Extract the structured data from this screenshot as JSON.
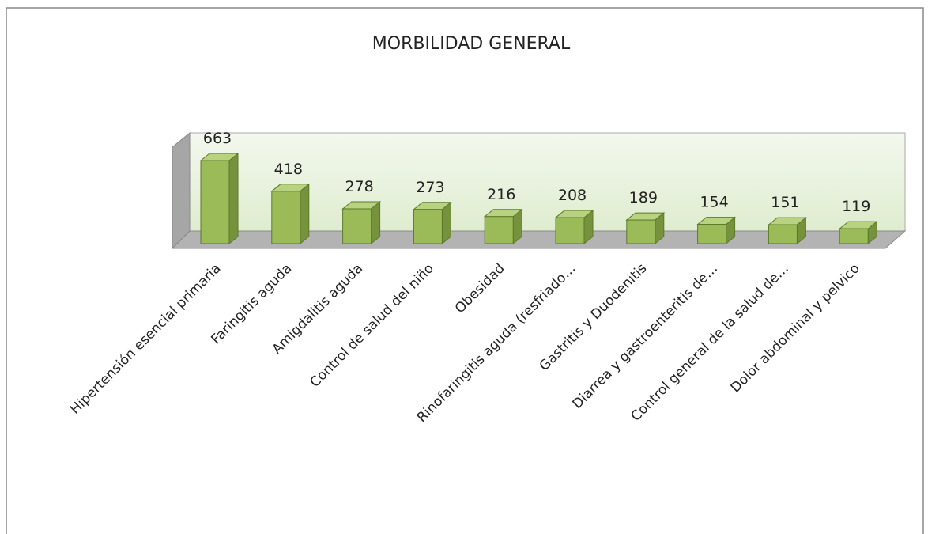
{
  "chart_data": {
    "type": "bar3d",
    "title": "MORBILIDAD GENERAL",
    "categories": [
      "Hipertensión esencial primaria",
      "Faringitis aguda",
      "Amigdalitis aguda",
      "Control de salud del niño",
      "Obesidad",
      "Rinofaringitis aguda (resfriado…",
      "Gastritis y Duodenitis",
      "Diarrea y gastroenteritis de…",
      "Control general de la salud de…",
      "Dolor abdominal y pelvico"
    ],
    "values": [
      663,
      418,
      278,
      273,
      216,
      208,
      189,
      154,
      151,
      119
    ],
    "color": "#9bbb59"
  }
}
